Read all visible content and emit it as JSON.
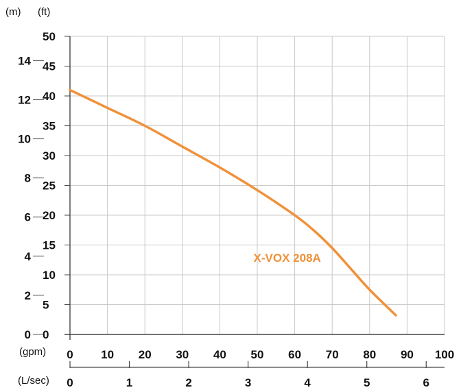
{
  "chart_data": {
    "type": "line",
    "title": "",
    "units": {
      "head_m": "(m)",
      "head_ft": "(ft)",
      "flow_gpm": "(gpm)",
      "flow_lsec": "(L/sec)"
    },
    "axes": {
      "head_ft": {
        "range": [
          0,
          50
        ],
        "ticks": [
          0,
          5,
          10,
          15,
          20,
          25,
          30,
          35,
          40,
          45,
          50
        ]
      },
      "head_m": {
        "ticks": [
          0,
          2,
          4,
          6,
          8,
          10,
          12,
          14
        ]
      },
      "flow_gpm": {
        "range": [
          0,
          100
        ],
        "ticks": [
          0,
          10,
          20,
          30,
          40,
          50,
          60,
          70,
          80,
          90,
          100
        ]
      },
      "flow_lsec": {
        "ticks": [
          0,
          1,
          2,
          3,
          4,
          5,
          6
        ]
      }
    },
    "grid": true,
    "series": [
      {
        "name": "X-VOX 208A",
        "color": "#f0913a",
        "points": [
          [
            0,
            41
          ],
          [
            10,
            38
          ],
          [
            20,
            35
          ],
          [
            30,
            31.5
          ],
          [
            40,
            28
          ],
          [
            50,
            24.2
          ],
          [
            60,
            20
          ],
          [
            65,
            17.5
          ],
          [
            70,
            14.5
          ],
          [
            75,
            11
          ],
          [
            80,
            7.5
          ],
          [
            87,
            3.2
          ]
        ]
      }
    ]
  }
}
